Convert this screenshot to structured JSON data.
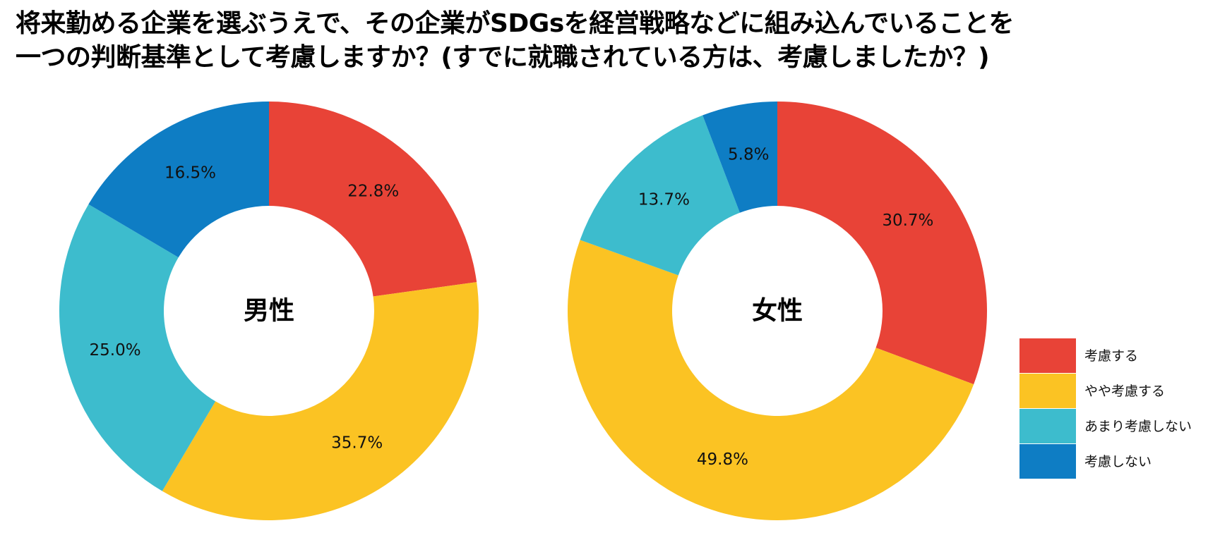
{
  "title": {
    "line1": "将来勤める企業を選ぶうえで、その企業がSDGsを経営戦略などに組み込んでいることを",
    "line2": "一つの判断基準として考慮しますか？(すでに就職されている方は、考慮しましたか？)"
  },
  "legend": {
    "placement": "right",
    "items": [
      "考慮する",
      "やや考慮する",
      "あまり考慮しない",
      "考慮しない"
    ]
  },
  "colors": [
    "#E84337",
    "#FBC323",
    "#3DBCCD",
    "#0E7DC4"
  ],
  "chart_data": [
    {
      "type": "pie",
      "center_label": "男性",
      "categories": [
        "考慮する",
        "やや考慮する",
        "あまり考慮しない",
        "考慮しない"
      ],
      "values": [
        22.8,
        35.7,
        25.0,
        16.5
      ],
      "labels": [
        "22.8%",
        "35.7%",
        "25.0%",
        "16.5%"
      ]
    },
    {
      "type": "pie",
      "center_label": "女性",
      "categories": [
        "考慮する",
        "やや考慮する",
        "あまり考慮しない",
        "考慮しない"
      ],
      "values": [
        30.7,
        49.8,
        13.7,
        5.8
      ],
      "labels": [
        "30.7%",
        "49.8%",
        "13.7%",
        "5.8%"
      ]
    }
  ]
}
